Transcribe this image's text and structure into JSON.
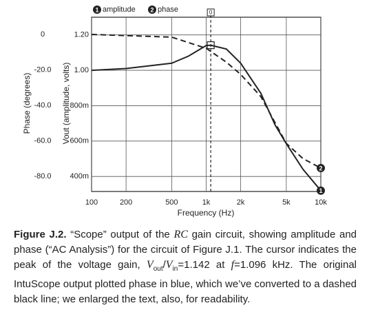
{
  "chart_data": {
    "type": "line",
    "legend": {
      "position": "top"
    },
    "xlabel": "Frequency (Hz)",
    "ylabel": [
      "V",
      "out",
      " (amplitude, volts)"
    ],
    "y2label": "Phase (degrees)",
    "xscale": "log",
    "xlim": [
      100,
      10000
    ],
    "xticks": [
      100,
      200,
      500,
      {
        "value": 1000,
        "label": "1k"
      },
      {
        "value": 2000,
        "label": "2k"
      },
      {
        "value": 5000,
        "label": "5k"
      },
      {
        "value": 10000,
        "label": "10k"
      }
    ],
    "ylim": [
      0.315,
      1.3
    ],
    "yticks": [
      {
        "value": 0.4,
        "label": "400m"
      },
      {
        "value": 0.6,
        "label": "600m"
      },
      {
        "value": 0.8,
        "label": "800m"
      },
      {
        "value": 1.0,
        "label": "1.00"
      },
      {
        "value": 1.2,
        "label": "1.20"
      }
    ],
    "y2lim": [
      -88.5,
      9.7
    ],
    "y2ticks": [
      {
        "value": -80,
        "label": "-80.0"
      },
      {
        "value": -60,
        "label": "-60.0"
      },
      {
        "value": -40,
        "label": "-40.0"
      },
      {
        "value": -20,
        "label": "-20.0"
      },
      0
    ],
    "grid": true,
    "series": [
      {
        "name": "amplitude",
        "marker": "1",
        "color": "#222222",
        "dashed": false,
        "x": [
          100,
          200,
          500,
          700,
          1000,
          1096,
          1500,
          2000,
          3000,
          4000,
          5000,
          7000,
          10000
        ],
        "values": [
          1.0,
          1.01,
          1.04,
          1.08,
          1.14,
          1.142,
          1.12,
          1.04,
          0.87,
          0.69,
          0.585,
          0.44,
          0.32
        ]
      },
      {
        "name": "phase",
        "marker": "2",
        "color": "#222222",
        "dashed": true,
        "axis": "y2",
        "x": [
          100,
          500,
          1000,
          1500,
          2000,
          3000,
          5000,
          7000,
          10000
        ],
        "values": [
          0,
          -1.5,
          -7.8,
          -15.6,
          -22.5,
          -35,
          -61.4,
          -70,
          -75.3
        ]
      }
    ],
    "cursor": {
      "x": 1096,
      "y": 1.142,
      "label": "0"
    }
  },
  "caption": {
    "label": "Figure J.2.",
    "parts": [
      "“Scope” output of the ",
      "RC",
      " gain circuit, showing amplitude and phase (“AC Analysis”) for the circuit of Figure J.1. The cursor indicates the peak of the voltage gain, ",
      "V",
      "out",
      "/",
      "V",
      "in",
      "=1.142 at ",
      "f",
      "=1.096 kHz. The original IntuScope output plotted phase in blue, which we’ve converted to a dashed black line; we enlarged the text, also, for readability."
    ]
  }
}
